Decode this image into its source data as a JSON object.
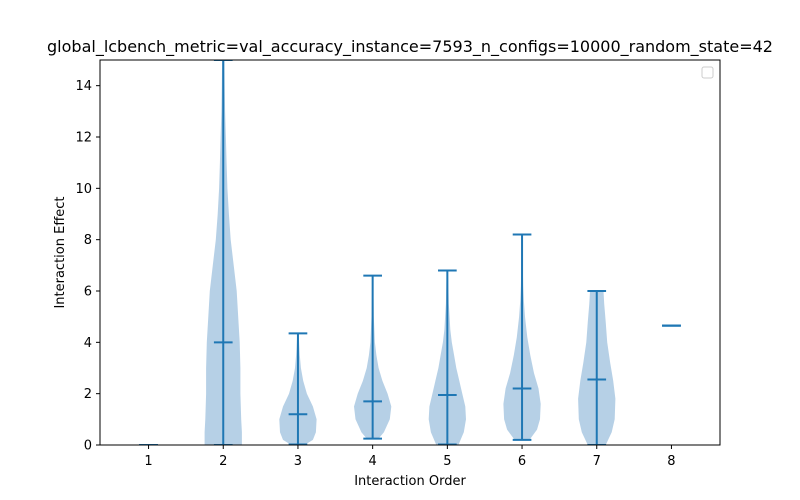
{
  "chart_data": {
    "type": "violin",
    "title": "global_lcbench_metric=val_accuracy_instance=7593_n_configs=10000_random_state=42",
    "xlabel": "Interaction Order",
    "ylabel": "Interaction Effect",
    "ylim": [
      0,
      15
    ],
    "xlim": [
      0.35,
      8.65
    ],
    "x_ticks": [
      1,
      2,
      3,
      4,
      5,
      6,
      7,
      8
    ],
    "y_ticks": [
      0,
      2,
      4,
      6,
      8,
      10,
      12,
      14
    ],
    "legend": {
      "placement": "top-right",
      "entries": []
    },
    "grid": false,
    "colors": {
      "body": "#a9c8e2",
      "line": "#1f77b4"
    },
    "violins": [
      {
        "x": 1,
        "min": 0.0,
        "max": 0.0,
        "mean": 0.0,
        "profile": []
      },
      {
        "x": 2,
        "min": 0.0,
        "max": 15.0,
        "mean": 4.0,
        "profile": [
          [
            0,
            0.25
          ],
          [
            0.5,
            0.25
          ],
          [
            1,
            0.24
          ],
          [
            2,
            0.23
          ],
          [
            3,
            0.23
          ],
          [
            4,
            0.22
          ],
          [
            5,
            0.2
          ],
          [
            6,
            0.18
          ],
          [
            7,
            0.14
          ],
          [
            8,
            0.1
          ],
          [
            9,
            0.075
          ],
          [
            10,
            0.055
          ],
          [
            11,
            0.045
          ],
          [
            12,
            0.035
          ],
          [
            13,
            0.025
          ],
          [
            14,
            0.02
          ],
          [
            15,
            0.015
          ]
        ]
      },
      {
        "x": 3,
        "min": 0.02,
        "max": 4.35,
        "mean": 1.2,
        "profile": [
          [
            0.02,
            0.1
          ],
          [
            0.2,
            0.2
          ],
          [
            0.5,
            0.24
          ],
          [
            1.0,
            0.25
          ],
          [
            1.5,
            0.2
          ],
          [
            2.0,
            0.12
          ],
          [
            2.5,
            0.07
          ],
          [
            3.0,
            0.04
          ],
          [
            3.5,
            0.025
          ],
          [
            4.0,
            0.015
          ],
          [
            4.35,
            0.01
          ]
        ]
      },
      {
        "x": 4,
        "min": 0.25,
        "max": 6.6,
        "mean": 1.7,
        "profile": [
          [
            0.25,
            0.08
          ],
          [
            0.5,
            0.15
          ],
          [
            1.0,
            0.23
          ],
          [
            1.5,
            0.25
          ],
          [
            2.0,
            0.2
          ],
          [
            2.5,
            0.13
          ],
          [
            3.0,
            0.08
          ],
          [
            3.5,
            0.05
          ],
          [
            4.0,
            0.03
          ],
          [
            5.0,
            0.015
          ],
          [
            6.0,
            0.01
          ],
          [
            6.6,
            0.006
          ]
        ]
      },
      {
        "x": 5,
        "min": 0.02,
        "max": 6.8,
        "mean": 1.95,
        "profile": [
          [
            0.02,
            0.15
          ],
          [
            0.5,
            0.22
          ],
          [
            1.0,
            0.25
          ],
          [
            1.5,
            0.24
          ],
          [
            2.0,
            0.2
          ],
          [
            2.5,
            0.16
          ],
          [
            3.0,
            0.12
          ],
          [
            3.5,
            0.09
          ],
          [
            4.0,
            0.06
          ],
          [
            4.5,
            0.04
          ],
          [
            5.0,
            0.03
          ],
          [
            5.5,
            0.02
          ],
          [
            6.0,
            0.015
          ],
          [
            6.8,
            0.008
          ]
        ]
      },
      {
        "x": 6,
        "min": 0.2,
        "max": 8.2,
        "mean": 2.2,
        "profile": [
          [
            0.2,
            0.1
          ],
          [
            0.6,
            0.2
          ],
          [
            1.0,
            0.24
          ],
          [
            1.6,
            0.25
          ],
          [
            2.2,
            0.22
          ],
          [
            2.8,
            0.16
          ],
          [
            3.5,
            0.11
          ],
          [
            4.2,
            0.07
          ],
          [
            5.0,
            0.04
          ],
          [
            5.6,
            0.025
          ],
          [
            6.2,
            0.015
          ],
          [
            7.0,
            0.01
          ],
          [
            8.2,
            0.005
          ]
        ]
      },
      {
        "x": 7,
        "min": 0.0,
        "max": 6.0,
        "mean": 2.55,
        "profile": [
          [
            0.0,
            0.12
          ],
          [
            0.5,
            0.2
          ],
          [
            1.0,
            0.24
          ],
          [
            1.8,
            0.25
          ],
          [
            2.5,
            0.22
          ],
          [
            3.2,
            0.18
          ],
          [
            4.0,
            0.14
          ],
          [
            4.8,
            0.12
          ],
          [
            5.5,
            0.1
          ],
          [
            6.0,
            0.09
          ]
        ]
      },
      {
        "x": 8,
        "min": 4.65,
        "max": 4.65,
        "mean": 4.65,
        "profile": []
      }
    ]
  }
}
